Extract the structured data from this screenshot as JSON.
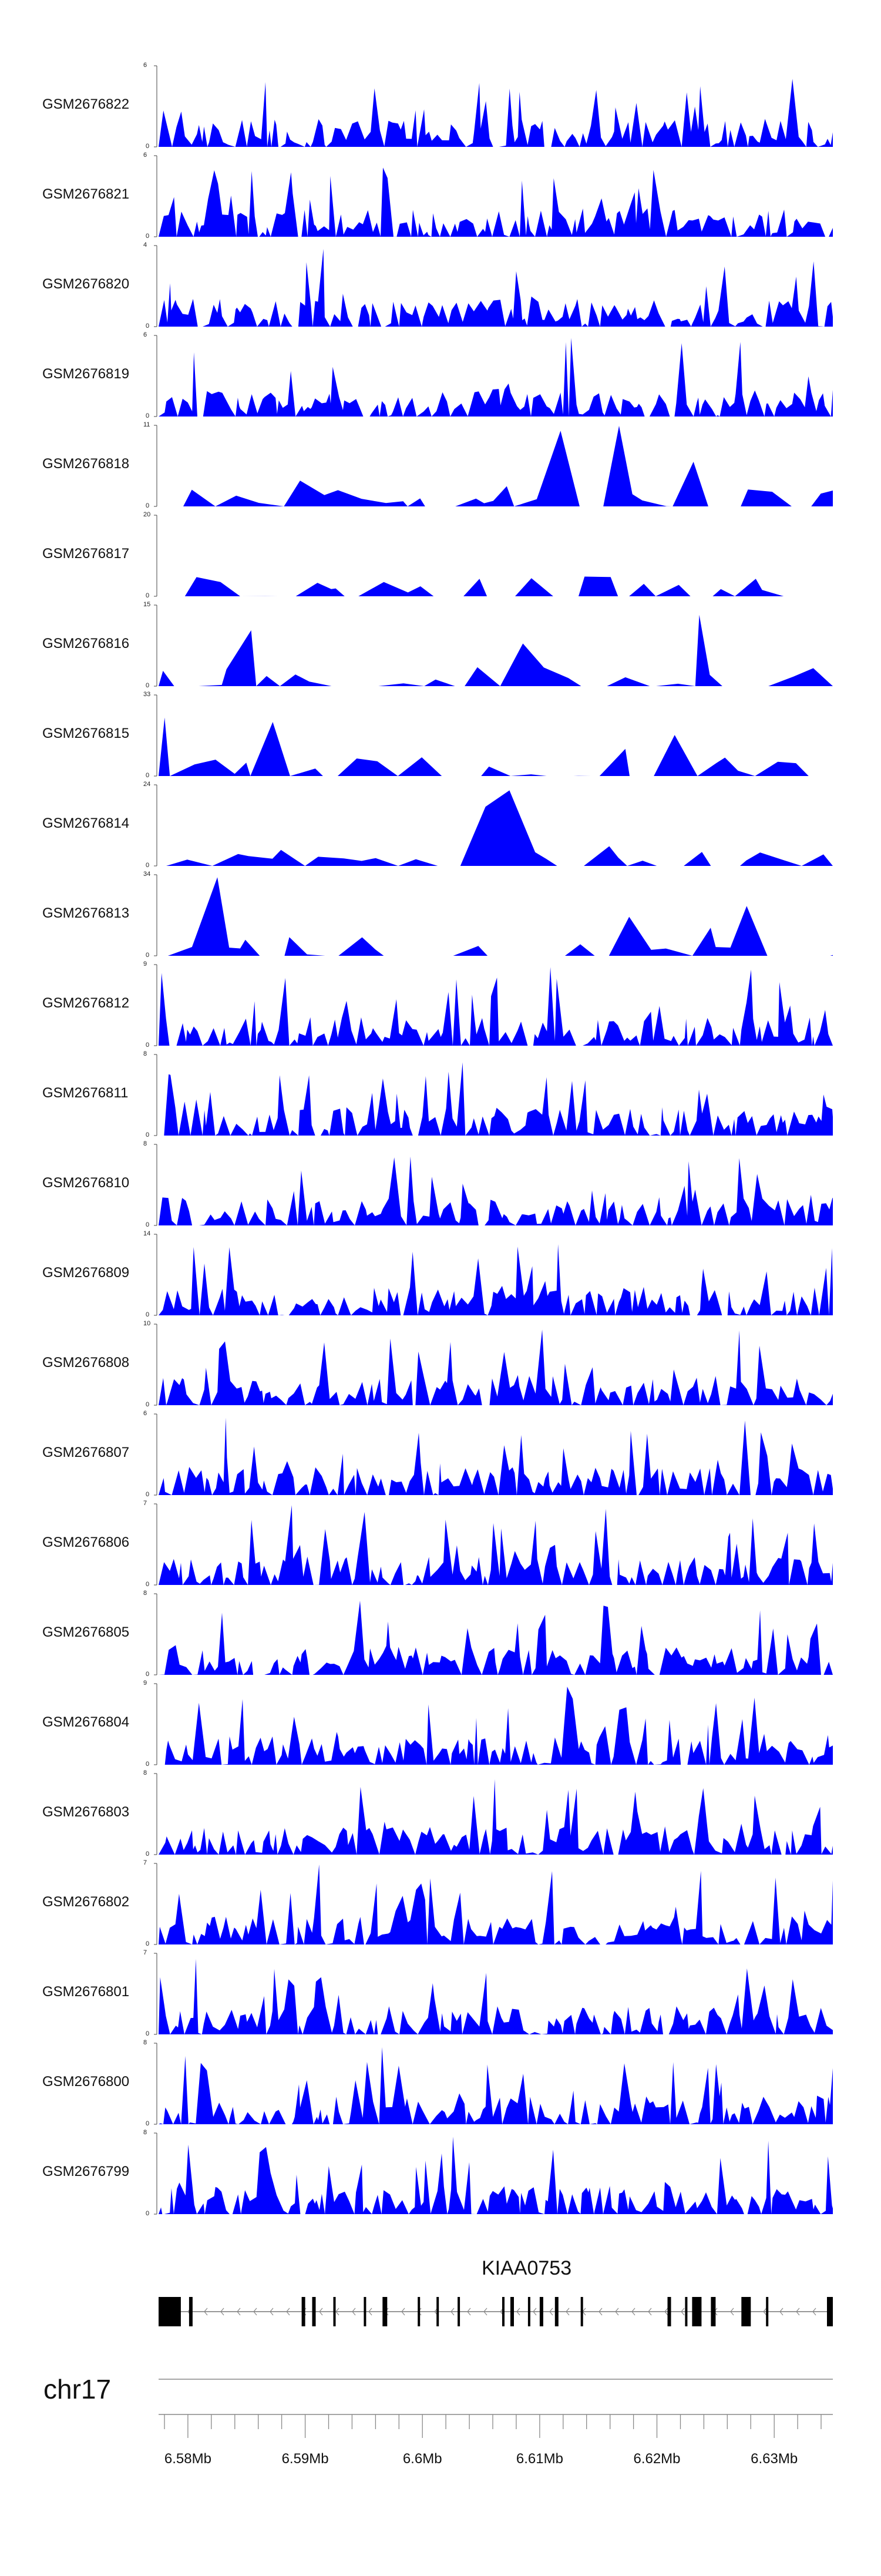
{
  "chart_data": {
    "type": "area",
    "chromosome": "chr17",
    "gene": "KIAA0753",
    "x_range_mb": [
      6.5775,
      6.635
    ],
    "x_ticks": [
      "6.58Mb",
      "6.59Mb",
      "6.6Mb",
      "6.61Mb",
      "6.62Mb",
      "6.63Mb"
    ],
    "x_tick_values_mb": [
      6.58,
      6.59,
      6.6,
      6.61,
      6.62,
      6.63
    ],
    "series_color": "#0000ff",
    "tracks": [
      {
        "name": "GSM2676822",
        "ymax": "6"
      },
      {
        "name": "GSM2676821",
        "ymax": "6"
      },
      {
        "name": "GSM2676820",
        "ymax": "4"
      },
      {
        "name": "GSM2676819",
        "ymax": "6"
      },
      {
        "name": "GSM2676818",
        "ymax": "11"
      },
      {
        "name": "GSM2676817",
        "ymax": "20"
      },
      {
        "name": "GSM2676816",
        "ymax": "15"
      },
      {
        "name": "GSM2676815",
        "ymax": "33"
      },
      {
        "name": "GSM2676814",
        "ymax": "24"
      },
      {
        "name": "GSM2676813",
        "ymax": "34"
      },
      {
        "name": "GSM2676812",
        "ymax": "9"
      },
      {
        "name": "GSM2676811",
        "ymax": "8"
      },
      {
        "name": "GSM2676810",
        "ymax": "8"
      },
      {
        "name": "GSM2676809",
        "ymax": "14"
      },
      {
        "name": "GSM2676808",
        "ymax": "10"
      },
      {
        "name": "GSM2676807",
        "ymax": "6"
      },
      {
        "name": "GSM2676806",
        "ymax": "7"
      },
      {
        "name": "GSM2676805",
        "ymax": "8"
      },
      {
        "name": "GSM2676804",
        "ymax": "9"
      },
      {
        "name": "GSM2676803",
        "ymax": "8"
      },
      {
        "name": "GSM2676802",
        "ymax": "7"
      },
      {
        "name": "GSM2676801",
        "ymax": "7"
      },
      {
        "name": "GSM2676800",
        "ymax": "8"
      },
      {
        "name": "GSM2676799",
        "ymax": "8"
      }
    ],
    "exons_mb": [
      [
        6.5775,
        6.5794
      ],
      [
        6.5801,
        6.5804
      ],
      [
        6.5897,
        6.59
      ],
      [
        6.5906,
        6.5909
      ],
      [
        6.5924,
        6.5926
      ],
      [
        6.595,
        6.5952
      ],
      [
        6.5966,
        6.597
      ],
      [
        6.5996,
        6.5998
      ],
      [
        6.6012,
        6.6014
      ],
      [
        6.603,
        6.6032
      ],
      [
        6.6068,
        6.607
      ],
      [
        6.6075,
        6.6078
      ],
      [
        6.609,
        6.6092
      ],
      [
        6.61,
        6.6103
      ],
      [
        6.6113,
        6.6116
      ],
      [
        6.6135,
        6.6137
      ],
      [
        6.6209,
        6.6212
      ],
      [
        6.6224,
        6.6226
      ],
      [
        6.623,
        6.6238
      ],
      [
        6.6246,
        6.625
      ],
      [
        6.6272,
        6.628
      ],
      [
        6.6293,
        6.6295
      ],
      [
        6.6345,
        6.635
      ]
    ]
  }
}
